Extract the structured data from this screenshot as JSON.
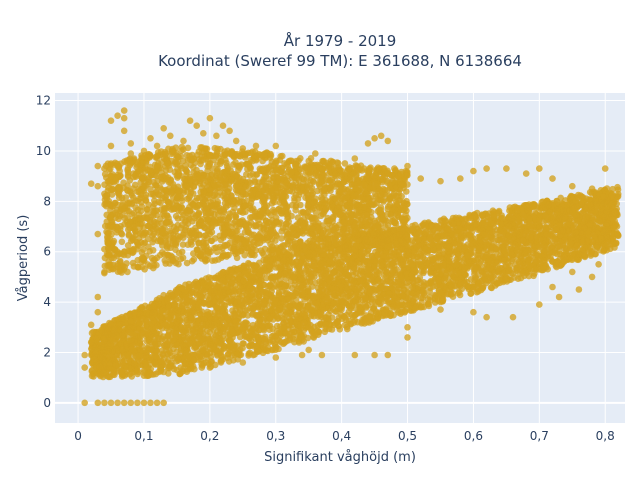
{
  "chart_data": {
    "type": "scatter",
    "title_lines": [
      "År 1979 - 2019",
      "Koordinat (Sweref 99 TM): E 361688, N 6138664"
    ],
    "xlabel": "Signifikant våghöjd (m)",
    "ylabel": "Vågperiod (s)",
    "xlim": [
      -0.035,
      0.83
    ],
    "ylim": [
      -0.8,
      12.3
    ],
    "x_ticks": [
      0,
      0.1,
      0.2,
      0.3,
      0.4,
      0.5,
      0.6,
      0.7,
      0.8
    ],
    "x_tick_labels": [
      "0",
      "0,1",
      "0,2",
      "0,3",
      "0,4",
      "0,5",
      "0,6",
      "0,7",
      "0,8"
    ],
    "y_ticks": [
      0,
      2,
      4,
      6,
      8,
      10,
      12
    ],
    "y_tick_labels": [
      "0",
      "2",
      "4",
      "6",
      "8",
      "10",
      "12"
    ],
    "grid": true,
    "plot_background": "#e5ecf6",
    "grid_color": "#ffffff",
    "marker_color": "#d4a21e",
    "series": [
      {
        "points": [
          [
            0.01,
            0
          ],
          [
            0.03,
            0
          ],
          [
            0.04,
            0
          ],
          [
            0.05,
            0
          ],
          [
            0.06,
            0
          ],
          [
            0.07,
            0
          ],
          [
            0.08,
            0
          ],
          [
            0.09,
            0
          ],
          [
            0.1,
            0
          ],
          [
            0.11,
            0
          ],
          [
            0.12,
            0
          ],
          [
            0.13,
            0
          ],
          [
            0.01,
            1.4
          ],
          [
            0.01,
            1.9
          ],
          [
            0.02,
            2.4
          ],
          [
            0.02,
            3.1
          ],
          [
            0.03,
            3.6
          ],
          [
            0.03,
            4.2
          ],
          [
            0.04,
            5.2
          ],
          [
            0.04,
            6.1
          ],
          [
            0.03,
            6.7
          ],
          [
            0.03,
            8.6
          ],
          [
            0.03,
            9.4
          ],
          [
            0.04,
            9.3
          ],
          [
            0.05,
            9.5
          ],
          [
            0.05,
            10.2
          ],
          [
            0.05,
            11.2
          ],
          [
            0.06,
            11.4
          ],
          [
            0.07,
            11.6
          ],
          [
            0.07,
            11.3
          ],
          [
            0.08,
            10.3
          ],
          [
            0.08,
            9.9
          ],
          [
            0.07,
            10.8
          ],
          [
            0.1,
            10.0
          ],
          [
            0.11,
            10.5
          ],
          [
            0.12,
            10.2
          ],
          [
            0.13,
            10.9
          ],
          [
            0.14,
            10.6
          ],
          [
            0.16,
            10.4
          ],
          [
            0.17,
            11.2
          ],
          [
            0.18,
            11.0
          ],
          [
            0.19,
            10.7
          ],
          [
            0.2,
            11.3
          ],
          [
            0.21,
            10.6
          ],
          [
            0.22,
            11.0
          ],
          [
            0.23,
            10.8
          ],
          [
            0.24,
            10.4
          ],
          [
            0.25,
            10.1
          ],
          [
            0.27,
            10.2
          ],
          [
            0.28,
            9.6
          ],
          [
            0.3,
            10.2
          ],
          [
            0.31,
            9.8
          ],
          [
            0.33,
            9.4
          ],
          [
            0.35,
            9.6
          ],
          [
            0.36,
            9.9
          ],
          [
            0.38,
            9.3
          ],
          [
            0.4,
            9.2
          ],
          [
            0.42,
            9.7
          ],
          [
            0.44,
            10.3
          ],
          [
            0.45,
            10.5
          ],
          [
            0.46,
            10.6
          ],
          [
            0.47,
            10.4
          ],
          [
            0.48,
            9.3
          ],
          [
            0.5,
            9.4
          ],
          [
            0.52,
            8.9
          ],
          [
            0.55,
            8.8
          ],
          [
            0.58,
            8.9
          ],
          [
            0.6,
            9.2
          ],
          [
            0.62,
            9.3
          ],
          [
            0.65,
            9.3
          ],
          [
            0.68,
            9.1
          ],
          [
            0.7,
            9.3
          ],
          [
            0.72,
            8.9
          ],
          [
            0.75,
            8.6
          ],
          [
            0.78,
            8.5
          ],
          [
            0.8,
            9.3
          ],
          [
            0.81,
            8.2
          ],
          [
            0.81,
            7.9
          ],
          [
            0.34,
            1.9
          ],
          [
            0.37,
            1.9
          ],
          [
            0.42,
            1.9
          ],
          [
            0.45,
            1.9
          ],
          [
            0.47,
            1.9
          ],
          [
            0.5,
            3.0
          ],
          [
            0.5,
            2.6
          ],
          [
            0.55,
            3.7
          ],
          [
            0.6,
            3.6
          ],
          [
            0.62,
            3.4
          ],
          [
            0.66,
            3.4
          ],
          [
            0.7,
            3.9
          ],
          [
            0.73,
            4.2
          ],
          [
            0.76,
            4.5
          ],
          [
            0.78,
            5.0
          ],
          [
            0.79,
            5.5
          ],
          [
            0.78,
            6.4
          ],
          [
            0.8,
            7.4
          ],
          [
            0.8,
            6.8
          ],
          [
            0.75,
            5.2
          ],
          [
            0.72,
            4.6
          ],
          [
            0.05,
            1.2
          ],
          [
            0.1,
            1.2
          ],
          [
            0.15,
            1.3
          ],
          [
            0.2,
            1.4
          ],
          [
            0.25,
            1.6
          ],
          [
            0.3,
            1.8
          ],
          [
            0.35,
            2.1
          ],
          [
            0.02,
            8.7
          ],
          [
            0.05,
            9.0
          ],
          [
            0.06,
            9.4
          ],
          [
            0.08,
            9.5
          ],
          [
            0.12,
            9.4
          ],
          [
            0.15,
            9.5
          ]
        ],
        "bands": [
          {
            "x0": 0.02,
            "x1": 0.82,
            "lower": [
              1.0,
              1.1,
              2.0,
              3.0,
              4.0,
              5.0,
              6.2
            ],
            "upper": [
              2.8,
              4.6,
              5.8,
              6.6,
              7.3,
              7.9,
              8.6
            ],
            "count": 5200
          },
          {
            "x0": 0.04,
            "x1": 0.5,
            "lower": [
              5.0,
              5.5,
              5.8,
              6.0,
              6.2
            ],
            "upper": [
              9.5,
              10.2,
              10.0,
              9.6,
              9.2
            ],
            "count": 2600
          }
        ]
      }
    ]
  }
}
